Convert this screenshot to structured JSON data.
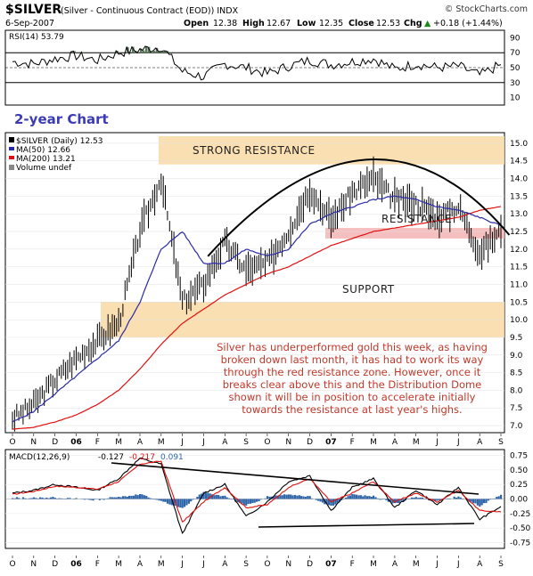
{
  "header": {
    "symbol": "$SILVER",
    "description": "(Silver - Continuous Contract (EOD)) INDX",
    "watermark": "© StockCharts.com",
    "date": "6-Sep-2007",
    "open_label": "Open",
    "open": "12.38",
    "high_label": "High",
    "high": "12.67",
    "low_label": "Low",
    "low": "12.35",
    "close_label": "Close",
    "close": "12.53",
    "change_label": "Chg",
    "change": "+0.18 (+1.44%)",
    "change_arrow": "▲"
  },
  "rsi": {
    "label": "RSI(14) 53.79",
    "ticks": [
      "90",
      "70",
      "50",
      "30",
      "10"
    ]
  },
  "main": {
    "chart_label": "2-year Chart",
    "legend": {
      "price": "$SILVER (Daily) 12.53",
      "ma50": "MA(50) 12.66",
      "ma200": "MA(200) 13.21",
      "volume": "Volume undef"
    },
    "zones": {
      "strong_resistance": "STRONG RESISTANCE",
      "resistance": "RESISTANCE",
      "support": "SUPPORT"
    },
    "comment": [
      "Silver has underperformed gold this week, as having",
      "broken down last month, it has had to work its way",
      "through the red resistance zone. However, once it",
      "breaks clear above this and the Distribution Dome",
      "shown it will be in position to accelerate initially",
      "towards the resistance at last year's highs."
    ]
  },
  "macd": {
    "label": "MACD(12,26,9)",
    "value1": "-0.127",
    "value2": "-0.217",
    "value3": "0.091",
    "ticks": [
      "0.75",
      "0.50",
      "0.25",
      "0.00",
      "-0.25",
      "-0.50",
      "-0.75"
    ]
  },
  "colors": {
    "price_bar": "#000000",
    "ma50": "#2a2aa8",
    "ma200": "#e01010",
    "zone_orange": "#f9d9a6",
    "zone_red": "#f4b4b4",
    "rsi_fill": "#5b7a5b",
    "macd_hist": "#2e64a8",
    "panel_bg": "#ffffff"
  },
  "chart_data": [
    {
      "type": "line",
      "title": "RSI(14) 53.79",
      "ylim": [
        0,
        100
      ],
      "y_ticks": [
        90,
        70,
        50,
        30,
        10
      ],
      "reference_lines": [
        70,
        50,
        30
      ],
      "x": [
        "O",
        "N",
        "D",
        "06",
        "F",
        "M",
        "A",
        "M",
        "J",
        "J",
        "A",
        "S",
        "O",
        "N",
        "D",
        "07",
        "F",
        "M",
        "A",
        "M",
        "J",
        "J",
        "A",
        "S"
      ],
      "series": [
        {
          "values": [
            58,
            55,
            62,
            66,
            60,
            70,
            74,
            78,
            45,
            38,
            55,
            50,
            42,
            52,
            60,
            54,
            58,
            62,
            48,
            55,
            50,
            52,
            40,
            54
          ]
        }
      ]
    },
    {
      "type": "line",
      "title": "$SILVER (Daily) 12.53",
      "ylim": [
        6.8,
        15.3
      ],
      "y_ticks": [
        15.0,
        14.5,
        14.0,
        13.5,
        13.0,
        12.5,
        12.0,
        11.5,
        11.0,
        10.5,
        10.0,
        9.5,
        9.0,
        8.5,
        8.0,
        7.5,
        7.0
      ],
      "x": [
        "O",
        "N",
        "D",
        "06",
        "F",
        "M",
        "A",
        "M",
        "J",
        "J",
        "A",
        "S",
        "O",
        "N",
        "D",
        "07",
        "F",
        "M",
        "A",
        "M",
        "J",
        "J",
        "A",
        "S"
      ],
      "series": [
        {
          "name": "$SILVER (Daily) 12.53",
          "values": [
            7.2,
            7.6,
            8.3,
            8.9,
            9.4,
            9.9,
            12.5,
            14.0,
            10.5,
            11.0,
            12.2,
            11.4,
            11.6,
            12.5,
            13.7,
            12.8,
            13.6,
            14.0,
            13.4,
            13.3,
            12.9,
            13.2,
            11.9,
            12.5
          ]
        },
        {
          "name": "MA(50) 12.66",
          "values": [
            7.1,
            7.4,
            7.9,
            8.4,
            8.9,
            9.4,
            10.5,
            12.0,
            12.5,
            11.6,
            11.6,
            12.0,
            11.8,
            12.0,
            12.7,
            13.0,
            13.2,
            13.4,
            13.5,
            13.4,
            13.2,
            13.1,
            12.9,
            12.66
          ]
        },
        {
          "name": "MA(200) 13.21",
          "values": [
            6.9,
            6.95,
            7.1,
            7.3,
            7.6,
            8.0,
            8.6,
            9.3,
            9.9,
            10.3,
            10.7,
            11.0,
            11.3,
            11.5,
            11.8,
            12.1,
            12.3,
            12.5,
            12.6,
            12.7,
            12.8,
            12.9,
            13.1,
            13.21
          ]
        }
      ],
      "zones": [
        {
          "label": "STRONG RESISTANCE",
          "from": 14.4,
          "to": 15.2
        },
        {
          "label": "RESISTANCE",
          "from": 12.3,
          "to": 12.6
        },
        {
          "label": "SUPPORT",
          "from": 9.5,
          "to": 10.5
        }
      ]
    },
    {
      "type": "line",
      "title": "MACD(12,26,9)",
      "ylim": [
        -0.85,
        0.85
      ],
      "y_ticks": [
        0.75,
        0.5,
        0.25,
        0.0,
        -0.25,
        -0.5,
        -0.75
      ],
      "x": [
        "O",
        "N",
        "D",
        "06",
        "F",
        "M",
        "A",
        "M",
        "J",
        "J",
        "A",
        "S",
        "O",
        "N",
        "D",
        "07",
        "F",
        "M",
        "A",
        "M",
        "J",
        "J",
        "A",
        "S"
      ],
      "series": [
        {
          "values": [
            0.1,
            0.15,
            0.25,
            0.2,
            0.15,
            0.35,
            0.7,
            0.6,
            -0.6,
            0.1,
            0.25,
            -0.3,
            -0.05,
            0.3,
            0.4,
            -0.2,
            0.2,
            0.35,
            -0.15,
            0.15,
            -0.1,
            0.2,
            -0.35,
            -0.13
          ]
        },
        {
          "values": [
            0.08,
            0.13,
            0.22,
            0.2,
            0.17,
            0.3,
            0.6,
            0.65,
            -0.4,
            -0.05,
            0.2,
            -0.15,
            -0.1,
            0.2,
            0.35,
            -0.05,
            0.1,
            0.3,
            -0.05,
            0.1,
            -0.05,
            0.15,
            -0.2,
            -0.22
          ]
        }
      ]
    }
  ]
}
